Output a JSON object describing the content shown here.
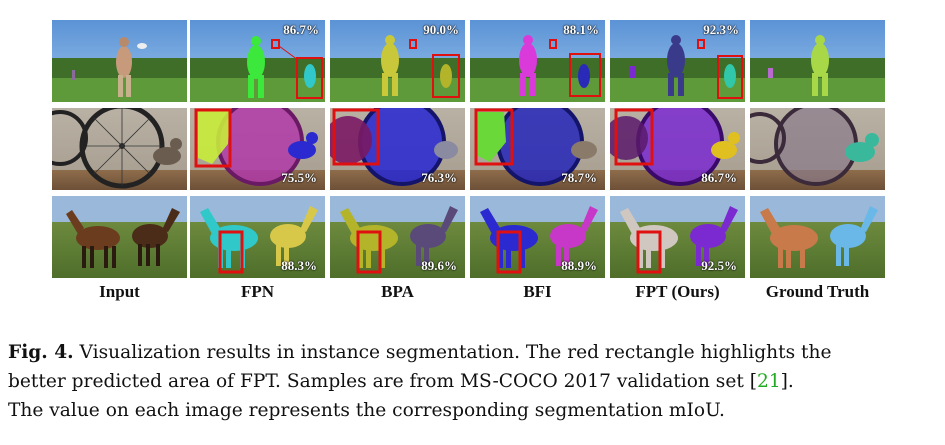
{
  "figure": {
    "columns": [
      "Input",
      "FPN",
      "BPA",
      "BFI",
      "FPT (Ours)",
      "Ground Truth"
    ],
    "rows": [
      {
        "scene": "person-frisbee",
        "miou": [
          "",
          "86.7%",
          "90.0%",
          "88.1%",
          "92.3%",
          ""
        ]
      },
      {
        "scene": "bicycle-cat",
        "miou": [
          "",
          "75.5%",
          "76.3%",
          "78.7%",
          "86.7%",
          ""
        ]
      },
      {
        "scene": "horses",
        "miou": [
          "",
          "88.3%",
          "89.6%",
          "88.9%",
          "92.5%",
          ""
        ]
      }
    ],
    "mask_colors": {
      "fpn": [
        "#3be83b",
        "#c8ec3a",
        "#30c8c8"
      ],
      "bpa": [
        "#c8c83a",
        "#2a2ad0",
        "#b4b42a"
      ],
      "bfi": [
        "#d93ad9",
        "#2a2ab8",
        "#2a2ad0"
      ],
      "fpt": [
        "#3a3a8a",
        "#7a2ad0",
        "#d0c8c0"
      ],
      "gt": [
        "#a8d848",
        "#3ab89c",
        "#6ab8e8"
      ],
      "highlight": "#e01010"
    }
  },
  "caption": {
    "label": "Fig. 4.",
    "line1": "Visualization results in instance segmentation. The red rectangle highlights the",
    "line2_pre": "better predicted area of FPT. Samples are from MS-COCO 2017 validation set [",
    "citation": "21",
    "line2_post": "].",
    "line3": "The value on each image represents the corresponding segmentation mIoU."
  }
}
